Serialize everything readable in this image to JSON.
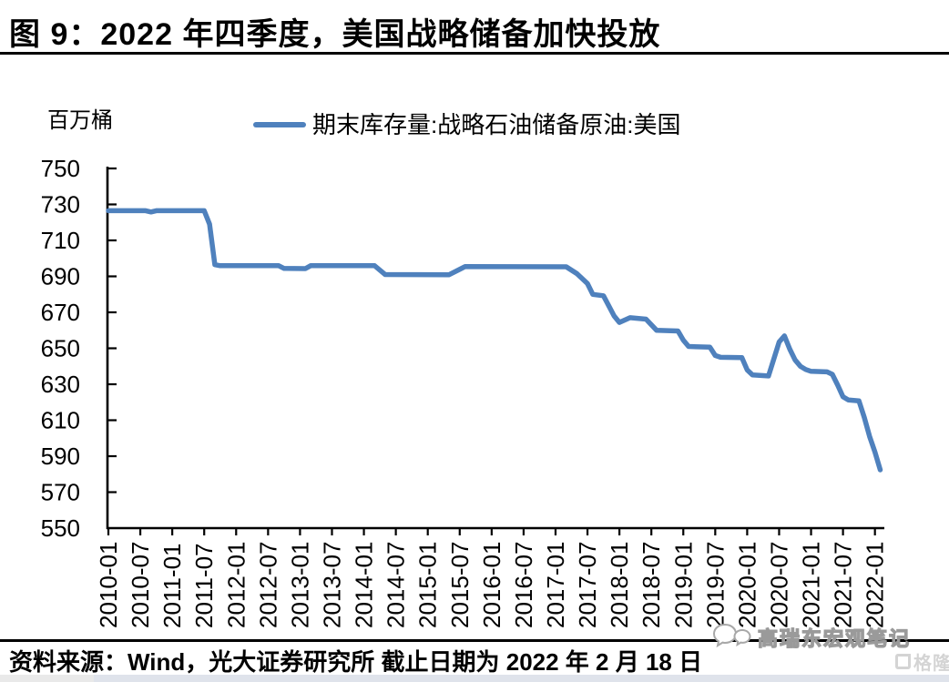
{
  "title": "图 9：2022 年四季度，美国战略储备加快投放",
  "unit_label": "百万桶",
  "legend": {
    "label": "期末库存量:战略石油储备原油:美国",
    "line_color": "#4F81BD"
  },
  "footer": {
    "source": "资料来源：Wind，光大证券研究所  截止日期为 2022 年 2 月 18 日"
  },
  "watermark": {
    "icon": "chat-bubbles-icon",
    "text": "高瑞东宏观笔记",
    "logo_text": "格隆汇"
  },
  "chart_data": {
    "type": "line",
    "title": "图 9：2022 年四季度，美国战略储备加快投放",
    "xlabel": "",
    "ylabel": "百万桶",
    "ylim": [
      550,
      750
    ],
    "y_ticks": [
      750,
      730,
      710,
      690,
      670,
      650,
      630,
      610,
      590,
      570,
      550
    ],
    "x_tick_labels": [
      "2010-01",
      "2010-07",
      "2011-01",
      "2011-07",
      "2012-01",
      "2012-07",
      "2013-01",
      "2013-07",
      "2014-01",
      "2014-07",
      "2015-01",
      "2015-07",
      "2016-01",
      "2016-07",
      "2017-01",
      "2017-07",
      "2018-01",
      "2018-07",
      "2019-01",
      "2019-07",
      "2020-01",
      "2020-07",
      "2021-01",
      "2021-07",
      "2022-01"
    ],
    "grid": false,
    "legend_position": "top",
    "series": [
      {
        "name": "期末库存量:战略石油储备原油:美国",
        "color": "#4F81BD",
        "points": [
          [
            "2010-01",
            726.5
          ],
          [
            "2010-08",
            726.5
          ],
          [
            "2010-09",
            725.8
          ],
          [
            "2010-10",
            726.5
          ],
          [
            "2011-07",
            726.5
          ],
          [
            "2011-08",
            719.0
          ],
          [
            "2011-09",
            696.5
          ],
          [
            "2011-10",
            695.9
          ],
          [
            "2012-09",
            695.9
          ],
          [
            "2012-10",
            694.4
          ],
          [
            "2013-02",
            694.3
          ],
          [
            "2013-03",
            695.9
          ],
          [
            "2014-03",
            695.9
          ],
          [
            "2014-05",
            691.0
          ],
          [
            "2015-05",
            690.9
          ],
          [
            "2015-08",
            695.4
          ],
          [
            "2017-03",
            695.3
          ],
          [
            "2017-05",
            691.5
          ],
          [
            "2017-07",
            686.0
          ],
          [
            "2017-08",
            680.0
          ],
          [
            "2017-10",
            679.2
          ],
          [
            "2017-12",
            668.0
          ],
          [
            "2018-01",
            664.4
          ],
          [
            "2018-03",
            667.0
          ],
          [
            "2018-06",
            666.2
          ],
          [
            "2018-08",
            660.0
          ],
          [
            "2018-12",
            659.6
          ],
          [
            "2019-01",
            654.5
          ],
          [
            "2019-02",
            651.0
          ],
          [
            "2019-06",
            650.6
          ],
          [
            "2019-07",
            646.0
          ],
          [
            "2019-08",
            645.0
          ],
          [
            "2019-12",
            644.8
          ],
          [
            "2020-01",
            638.0
          ],
          [
            "2020-02",
            635.2
          ],
          [
            "2020-05",
            634.6
          ],
          [
            "2020-06",
            644.0
          ],
          [
            "2020-07",
            653.5
          ],
          [
            "2020-08",
            656.9
          ],
          [
            "2020-09",
            649.5
          ],
          [
            "2020-10",
            643.5
          ],
          [
            "2020-11",
            640.0
          ],
          [
            "2020-12",
            638.2
          ],
          [
            "2021-01",
            637.2
          ],
          [
            "2021-04",
            636.9
          ],
          [
            "2021-05",
            635.5
          ],
          [
            "2021-06",
            629.5
          ],
          [
            "2021-07",
            623.0
          ],
          [
            "2021-08",
            621.3
          ],
          [
            "2021-10",
            620.8
          ],
          [
            "2021-11",
            611.5
          ],
          [
            "2021-12",
            601.0
          ],
          [
            "2022-01",
            592.3
          ],
          [
            "2022-02",
            582.4
          ]
        ]
      }
    ]
  }
}
